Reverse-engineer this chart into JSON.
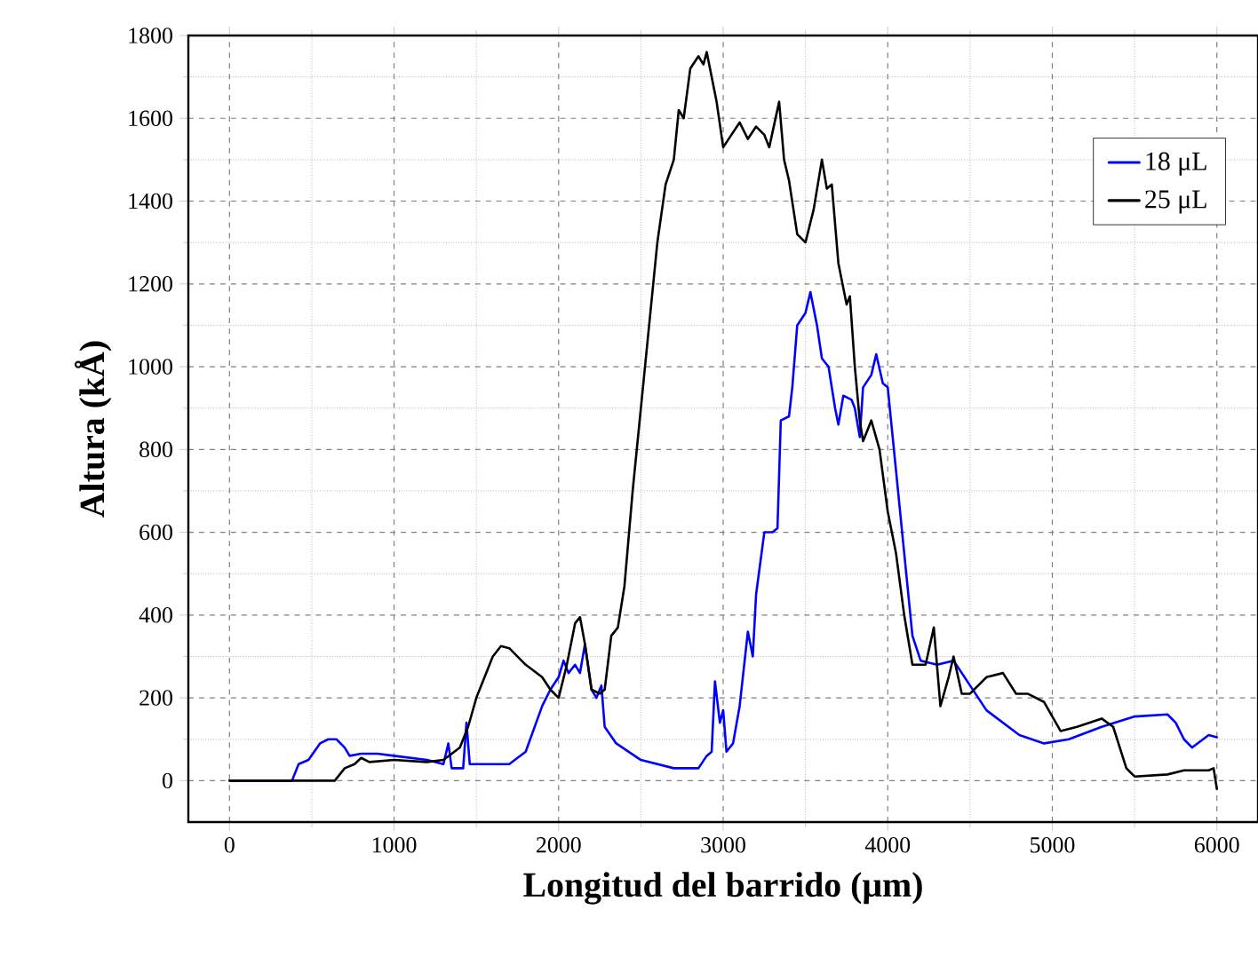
{
  "chart_data": {
    "type": "line",
    "xlabel": "Longitud del barrido (μm)",
    "ylabel": "Altura (kÅ)",
    "xlim": [
      -250,
      6250
    ],
    "ylim": [
      -100,
      1800
    ],
    "xticks": [
      0,
      1000,
      2000,
      3000,
      4000,
      5000,
      6000
    ],
    "yticks": [
      0,
      200,
      400,
      600,
      800,
      1000,
      1200,
      1400,
      1600,
      1800
    ],
    "grid": true,
    "legend": "top right",
    "marker": "none",
    "line_style": "solid",
    "series": [
      {
        "name": "18 μL",
        "color": "#0000ff",
        "x": [
          0,
          380,
          420,
          480,
          550,
          600,
          650,
          700,
          730,
          800,
          900,
          1000,
          1200,
          1300,
          1330,
          1350,
          1420,
          1440,
          1460,
          1700,
          1800,
          1900,
          1950,
          2000,
          2030,
          2060,
          2100,
          2130,
          2160,
          2200,
          2230,
          2260,
          2280,
          2350,
          2500,
          2700,
          2850,
          2900,
          2930,
          2950,
          2980,
          3000,
          3020,
          3060,
          3100,
          3150,
          3180,
          3200,
          3250,
          3300,
          3330,
          3350,
          3400,
          3420,
          3450,
          3500,
          3530,
          3570,
          3600,
          3640,
          3680,
          3700,
          3730,
          3780,
          3800,
          3830,
          3850,
          3900,
          3930,
          3970,
          4000,
          4050,
          4100,
          4150,
          4200,
          4300,
          4400,
          4500,
          4600,
          4800,
          4950,
          5100,
          5300,
          5500,
          5700,
          5750,
          5800,
          5850,
          5900,
          5950,
          6000
        ],
        "values": [
          0,
          0,
          40,
          50,
          90,
          100,
          100,
          80,
          60,
          65,
          65,
          60,
          50,
          40,
          90,
          30,
          30,
          140,
          40,
          40,
          70,
          180,
          220,
          250,
          290,
          260,
          280,
          260,
          330,
          220,
          200,
          230,
          130,
          90,
          50,
          30,
          30,
          60,
          70,
          240,
          140,
          170,
          70,
          90,
          180,
          360,
          300,
          450,
          600,
          600,
          610,
          870,
          880,
          950,
          1100,
          1130,
          1180,
          1100,
          1020,
          1000,
          900,
          860,
          930,
          920,
          900,
          830,
          950,
          980,
          1030,
          960,
          950,
          750,
          550,
          350,
          290,
          280,
          290,
          230,
          170,
          110,
          90,
          100,
          130,
          155,
          160,
          140,
          100,
          80,
          95,
          110,
          105
        ]
      },
      {
        "name": "25 μL",
        "color": "#000000",
        "x": [
          0,
          640,
          700,
          760,
          800,
          850,
          1000,
          1200,
          1300,
          1400,
          1450,
          1500,
          1600,
          1650,
          1700,
          1800,
          1900,
          1950,
          2000,
          2050,
          2100,
          2130,
          2160,
          2200,
          2250,
          2280,
          2320,
          2360,
          2400,
          2450,
          2500,
          2550,
          2600,
          2650,
          2700,
          2730,
          2760,
          2800,
          2850,
          2880,
          2900,
          2930,
          2960,
          3000,
          3050,
          3100,
          3150,
          3200,
          3250,
          3280,
          3340,
          3370,
          3400,
          3450,
          3500,
          3550,
          3600,
          3630,
          3660,
          3700,
          3750,
          3770,
          3800,
          3830,
          3850,
          3870,
          3900,
          3950,
          4000,
          4050,
          4100,
          4150,
          4200,
          4230,
          4280,
          4320,
          4370,
          4400,
          4450,
          4500,
          4600,
          4700,
          4780,
          4850,
          4950,
          5050,
          5150,
          5300,
          5370,
          5450,
          5500,
          5700,
          5800,
          5950,
          5980,
          6000
        ],
        "values": [
          0,
          0,
          30,
          40,
          55,
          45,
          50,
          45,
          50,
          80,
          130,
          200,
          300,
          325,
          320,
          280,
          250,
          220,
          200,
          280,
          380,
          395,
          330,
          220,
          210,
          220,
          350,
          370,
          470,
          700,
          900,
          1100,
          1300,
          1440,
          1500,
          1620,
          1600,
          1720,
          1750,
          1730,
          1760,
          1700,
          1640,
          1530,
          1560,
          1590,
          1550,
          1580,
          1560,
          1530,
          1640,
          1500,
          1450,
          1320,
          1300,
          1380,
          1500,
          1430,
          1440,
          1250,
          1150,
          1170,
          1000,
          870,
          820,
          840,
          870,
          800,
          650,
          550,
          400,
          280,
          280,
          280,
          370,
          180,
          250,
          300,
          210,
          210,
          250,
          260,
          210,
          210,
          190,
          120,
          130,
          150,
          130,
          30,
          10,
          15,
          25,
          25,
          30,
          -20
        ]
      }
    ]
  }
}
